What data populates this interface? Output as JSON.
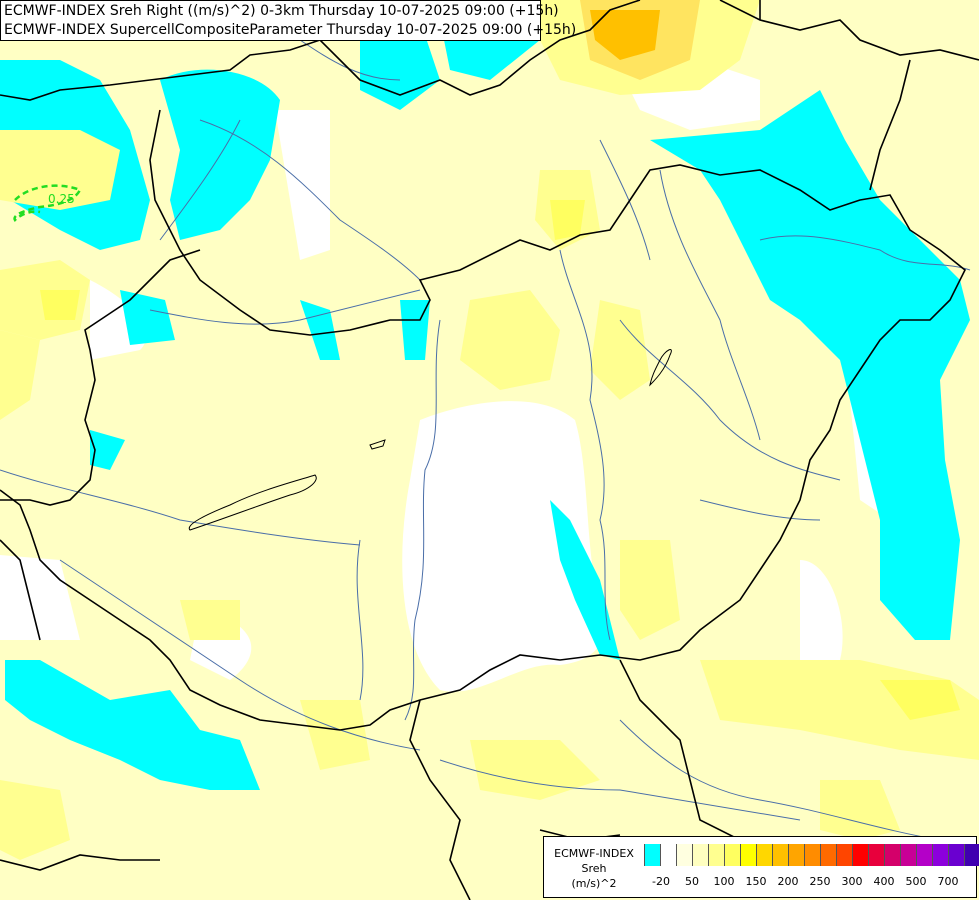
{
  "header": {
    "line1": "ECMWF-INDEX Sreh Right ((m/s)^2) 0-3km Thursday 10-07-2025 09:00 (+15h)",
    "line2": "ECMWF-INDEX SupercellCompositeParameter Thursday 10-07-2025 09:00 (+15h)"
  },
  "map": {
    "contour_label": "0.25",
    "contour_color": "#22dd22",
    "border_color": "#000000",
    "river_color": "#4a6ea8"
  },
  "legend": {
    "title_line1": "ECMWF-INDEX",
    "title_line2": "Sreh",
    "title_line3": "(m/s)^2",
    "colors": [
      "#00ffff",
      "#ffffff",
      "#ffffe0",
      "#ffffc0",
      "#ffff90",
      "#ffff60",
      "#ffff00",
      "#ffd700",
      "#ffc000",
      "#ffa500",
      "#ff8c00",
      "#ff6a00",
      "#ff4500",
      "#ff0000",
      "#e8003c",
      "#d4006a",
      "#c80096",
      "#b400c8",
      "#8c00dc",
      "#6a00d0",
      "#4000b0",
      "#200080"
    ],
    "tick_labels": [
      "-20",
      "50",
      "100",
      "150",
      "200",
      "250",
      "300",
      "400",
      "500",
      "700"
    ]
  }
}
